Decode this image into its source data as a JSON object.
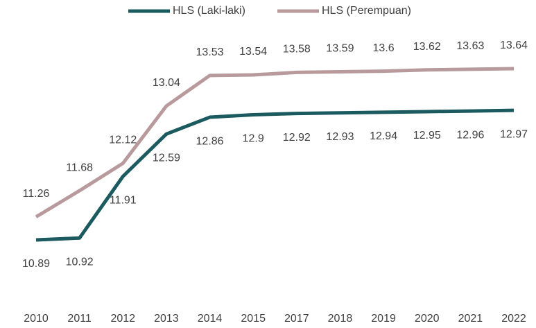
{
  "chart_data": {
    "type": "line",
    "categories": [
      "2010",
      "2011",
      "2012",
      "2013",
      "2014",
      "2015",
      "2017",
      "2018",
      "2019",
      "2020",
      "2021",
      "2022"
    ],
    "series": [
      {
        "name": "HLS (Laki-laki)",
        "color": "#1b5a5e",
        "values": [
          10.89,
          10.92,
          11.91,
          12.59,
          12.86,
          12.9,
          12.92,
          12.93,
          12.94,
          12.95,
          12.96,
          12.97
        ]
      },
      {
        "name": "HLS (Perempuan)",
        "color": "#b89a9d",
        "values": [
          11.26,
          11.68,
          12.12,
          13.04,
          13.53,
          13.54,
          13.58,
          13.59,
          13.6,
          13.62,
          13.63,
          13.64
        ]
      }
    ]
  }
}
